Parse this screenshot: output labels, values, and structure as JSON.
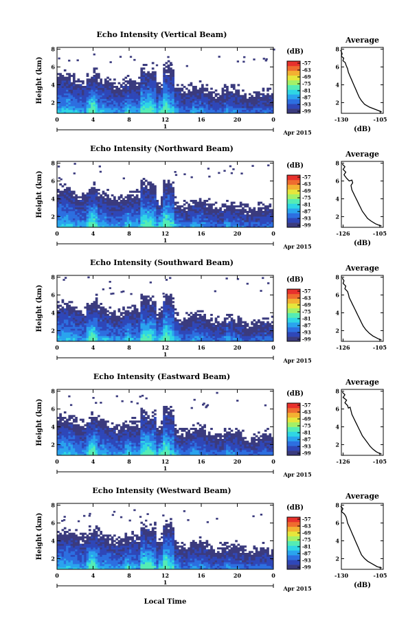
{
  "chart_data": {
    "type": "heatmap",
    "x_tick_labels": [
      "0",
      "4",
      "8",
      "12",
      "16",
      "20",
      "0"
    ],
    "y_tick_labels": [
      "2",
      "4",
      "6",
      "8"
    ],
    "date_label": "1",
    "month_year": "Apr 2015",
    "xlabel": "Local Time",
    "ylabel": "Height (km)",
    "colorbar": {
      "unit": "(dB)",
      "labels": [
        "-57",
        "-63",
        "-69",
        "-75",
        "-81",
        "-87",
        "-93",
        "-99"
      ],
      "colors": [
        "#3b3b7e",
        "#2f47b8",
        "#2d6fe0",
        "#2aa4ee",
        "#2fd6e4",
        "#55ecb4",
        "#a4f067",
        "#e6e63c",
        "#f3b132",
        "#ef6c2f",
        "#e8312c"
      ]
    },
    "panels": [
      {
        "title": "Echo Intensity (Vertical Beam)",
        "avg": {
          "title": "Average",
          "xlabel": "(dB)",
          "x_tick_labels": [
            "-130",
            "-105"
          ],
          "xlim": [
            -130,
            -103
          ],
          "points": [
            [
              -130.5,
              7.9
            ],
            [
              -129.5,
              7.5
            ],
            [
              -130,
              7.2
            ],
            [
              -128.5,
              7.0
            ],
            [
              -129,
              6.7
            ],
            [
              -127.5,
              6.5
            ],
            [
              -127,
              6.2
            ],
            [
              -126,
              5.8
            ],
            [
              -125.5,
              5.4
            ],
            [
              -124.5,
              5.0
            ],
            [
              -123.5,
              4.6
            ],
            [
              -122.5,
              4.2
            ],
            [
              -121.5,
              3.8
            ],
            [
              -120.5,
              3.4
            ],
            [
              -119.5,
              3.0
            ],
            [
              -118.5,
              2.6
            ],
            [
              -117,
              2.2
            ],
            [
              -115,
              1.8
            ],
            [
              -112,
              1.5
            ],
            [
              -109,
              1.3
            ],
            [
              -106,
              1.1
            ],
            [
              -104,
              0.95
            ]
          ]
        }
      },
      {
        "title": "Echo Intensity (Northward Beam)",
        "avg": {
          "title": "Average",
          "xlabel": "(dB)",
          "x_tick_labels": [
            "-126",
            "-105"
          ],
          "xlim": [
            -127,
            -103
          ],
          "points": [
            [
              -126.5,
              7.9
            ],
            [
              -125,
              7.6
            ],
            [
              -126,
              7.3
            ],
            [
              -124.5,
              7.0
            ],
            [
              -125.5,
              6.7
            ],
            [
              -124,
              6.3
            ],
            [
              -122.5,
              6.0
            ],
            [
              -121,
              6.1
            ],
            [
              -120.5,
              5.8
            ],
            [
              -121.5,
              5.5
            ],
            [
              -121,
              5.0
            ],
            [
              -120,
              4.6
            ],
            [
              -119,
              4.2
            ],
            [
              -118,
              3.8
            ],
            [
              -117,
              3.4
            ],
            [
              -116,
              3.0
            ],
            [
              -115,
              2.6
            ],
            [
              -113.5,
              2.2
            ],
            [
              -112,
              1.8
            ],
            [
              -110,
              1.5
            ],
            [
              -107.5,
              1.2
            ],
            [
              -105,
              1.0
            ],
            [
              -104,
              0.95
            ]
          ]
        }
      },
      {
        "title": "Echo Intensity (Southward Beam)",
        "avg": {
          "title": "Average",
          "xlabel": "",
          "x_tick_labels": [
            "-126",
            "-105"
          ],
          "xlim": [
            -127,
            -103
          ],
          "points": [
            [
              -126.5,
              7.9
            ],
            [
              -125.5,
              7.6
            ],
            [
              -126,
              7.3
            ],
            [
              -124.5,
              7.0
            ],
            [
              -125,
              6.7
            ],
            [
              -123.5,
              6.4
            ],
            [
              -123,
              6.1
            ],
            [
              -122.5,
              5.7
            ],
            [
              -121.5,
              5.3
            ],
            [
              -120.5,
              4.9
            ],
            [
              -119.5,
              4.5
            ],
            [
              -118.5,
              4.1
            ],
            [
              -117.5,
              3.7
            ],
            [
              -116.5,
              3.3
            ],
            [
              -115.5,
              2.9
            ],
            [
              -114.5,
              2.5
            ],
            [
              -113,
              2.1
            ],
            [
              -111,
              1.7
            ],
            [
              -109,
              1.4
            ],
            [
              -107,
              1.2
            ],
            [
              -105,
              1.0
            ],
            [
              -104,
              0.95
            ]
          ]
        }
      },
      {
        "title": "Echo Intensity (Eastward Beam)",
        "avg": {
          "title": "Average",
          "xlabel": "",
          "x_tick_labels": [
            "-126",
            "-105"
          ],
          "xlim": [
            -127,
            -103
          ],
          "points": [
            [
              -126.5,
              7.9
            ],
            [
              -125,
              7.6
            ],
            [
              -126,
              7.3
            ],
            [
              -124,
              7.0
            ],
            [
              -125,
              6.7
            ],
            [
              -123.5,
              6.4
            ],
            [
              -123,
              6.1
            ],
            [
              -122,
              6.2
            ],
            [
              -121.5,
              5.8
            ],
            [
              -121,
              5.4
            ],
            [
              -120,
              5.0
            ],
            [
              -119,
              4.6
            ],
            [
              -118,
              4.2
            ],
            [
              -117,
              3.8
            ],
            [
              -116,
              3.4
            ],
            [
              -115,
              3.0
            ],
            [
              -113.5,
              2.6
            ],
            [
              -112,
              2.2
            ],
            [
              -110.5,
              1.8
            ],
            [
              -109,
              1.5
            ],
            [
              -107,
              1.2
            ],
            [
              -105,
              1.0
            ],
            [
              -104,
              0.95
            ]
          ]
        }
      },
      {
        "title": "Echo Intensity (Westward Beam)",
        "avg": {
          "title": "Average",
          "xlabel": "(dB)",
          "x_tick_labels": [
            "-130",
            "-105"
          ],
          "xlim": [
            -130,
            -103
          ],
          "points": [
            [
              -130.5,
              7.9
            ],
            [
              -129,
              7.6
            ],
            [
              -130,
              7.3
            ],
            [
              -128,
              7.0
            ],
            [
              -127,
              6.7
            ],
            [
              -126.5,
              6.4
            ],
            [
              -126,
              6.0
            ],
            [
              -125,
              5.6
            ],
            [
              -124,
              5.2
            ],
            [
              -123,
              4.8
            ],
            [
              -122,
              4.4
            ],
            [
              -121,
              4.0
            ],
            [
              -120,
              3.6
            ],
            [
              -119,
              3.2
            ],
            [
              -118,
              2.8
            ],
            [
              -117,
              2.4
            ],
            [
              -115,
              2.0
            ],
            [
              -113,
              1.7
            ],
            [
              -110,
              1.4
            ],
            [
              -107,
              1.1
            ],
            [
              -105,
              1.0
            ],
            [
              -104,
              0.95
            ]
          ]
        }
      }
    ]
  }
}
